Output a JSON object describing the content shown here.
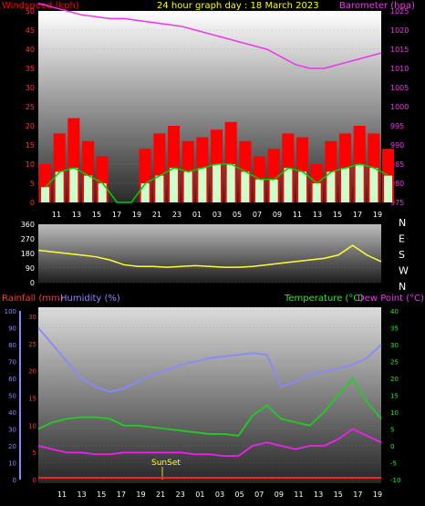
{
  "colors": {
    "background": "#000000",
    "windspeed_label": "#ff0000",
    "title": "#ffff00",
    "barometer": "#ee33ee",
    "gust": "#ff0000",
    "average_wind": "#00cc00",
    "wind_fill": "#ccffcc",
    "direction": "#ffff33",
    "rainfall": "#ff2222",
    "humidity": "#8888ff",
    "temperature": "#22cc22",
    "dewpoint": "#ee22ee",
    "axis_text": "#ffffff",
    "temp_axis": "#22ee22"
  },
  "chart_data": [
    {
      "id": "wind-baro",
      "type": "bar",
      "title": "24 hour graph day : 18 March 2023",
      "left_label": "Windspeed (kph)",
      "right_label": "Barometer (hpa)",
      "left_ticks": [
        "0",
        "5",
        "10",
        "15",
        "20",
        "25",
        "30",
        "35",
        "40",
        "45",
        "50"
      ],
      "right_ticks": [
        "975",
        "980",
        "985",
        "990",
        "995",
        "1000",
        "1005",
        "1010",
        "1015",
        "1020",
        "1025"
      ],
      "x_ticks": [
        "11",
        "13",
        "15",
        "17",
        "19",
        "21",
        "23",
        "01",
        "03",
        "05",
        "07",
        "09",
        "11",
        "13",
        "15",
        "17",
        "19"
      ],
      "ylim_left": [
        0,
        50
      ],
      "ylim_right": [
        975,
        1025
      ],
      "series": [
        {
          "name": "Barometer (hpa)",
          "x": [
            0,
            1,
            2,
            3,
            4,
            5,
            6,
            7,
            8,
            9,
            10,
            11,
            12,
            13,
            14,
            15,
            16,
            17,
            18,
            19,
            20,
            21,
            22,
            23,
            24
          ],
          "values": [
            1027,
            1026,
            1025,
            1024,
            1023.5,
            1023,
            1023,
            1022.5,
            1022,
            1021.5,
            1021,
            1020,
            1019,
            1018,
            1017,
            1016,
            1015,
            1013,
            1011,
            1010,
            1010,
            1011,
            1012,
            1013,
            1014
          ]
        },
        {
          "name": "Gust",
          "x": [
            0,
            1,
            2,
            3,
            4,
            5,
            6,
            7,
            8,
            9,
            10,
            11,
            12,
            13,
            14,
            15,
            16,
            17,
            18,
            19,
            20,
            21,
            22,
            23,
            24
          ],
          "values": [
            10,
            18,
            22,
            16,
            12,
            0,
            0,
            14,
            18,
            20,
            16,
            17,
            19,
            21,
            16,
            12,
            14,
            18,
            17,
            10,
            16,
            18,
            20,
            18,
            14
          ]
        },
        {
          "name": "Average",
          "x": [
            0,
            1,
            2,
            3,
            4,
            5,
            6,
            7,
            8,
            9,
            10,
            11,
            12,
            13,
            14,
            15,
            16,
            17,
            18,
            19,
            20,
            21,
            22,
            23,
            24
          ],
          "values": [
            4,
            8,
            9,
            7,
            5,
            0,
            0,
            5,
            7,
            9,
            8,
            9,
            10,
            10,
            8,
            6,
            6,
            9,
            8,
            5,
            8,
            9,
            10,
            9,
            7
          ]
        }
      ]
    },
    {
      "id": "direction",
      "type": "line",
      "left_ticks": [
        "0",
        "90",
        "180",
        "270",
        "360"
      ],
      "right_ticks": [
        "N",
        "W",
        "S",
        "E",
        "N"
      ],
      "ylim": [
        0,
        360
      ],
      "series": [
        {
          "name": "Direction",
          "x": [
            0,
            1,
            2,
            3,
            4,
            5,
            6,
            7,
            8,
            9,
            10,
            11,
            12,
            13,
            14,
            15,
            16,
            17,
            18,
            19,
            20,
            21,
            22,
            23,
            24
          ],
          "values": [
            200,
            190,
            180,
            170,
            160,
            140,
            110,
            100,
            100,
            95,
            100,
            105,
            100,
            95,
            95,
            100,
            110,
            120,
            130,
            140,
            150,
            170,
            230,
            170,
            130
          ]
        }
      ]
    },
    {
      "id": "temp-hum",
      "type": "line",
      "rain_label": "Rainfall (mm)",
      "hum_label": "Humidity (%)",
      "temp_label": "Temperature (°C)",
      "dew_label": "Dew Point (°C)",
      "annotation": "SunSet",
      "hum_ticks": [
        "0",
        "10",
        "20",
        "30",
        "40",
        "50",
        "60",
        "70",
        "80",
        "90",
        "100"
      ],
      "rain_ticks": [
        "0",
        "5",
        "10",
        "15",
        "20",
        "25",
        "30"
      ],
      "temp_ticks": [
        "-10",
        "-5",
        "0",
        "5",
        "10",
        "15",
        "20",
        "25",
        "30",
        "35",
        "40"
      ],
      "x_ticks": [
        "11",
        "13",
        "15",
        "17",
        "19",
        "21",
        "23",
        "01",
        "03",
        "05",
        "07",
        "09",
        "11",
        "13",
        "15",
        "17",
        "19"
      ],
      "ylim_humidity": [
        0,
        100
      ],
      "ylim_temperature": [
        -10,
        40
      ],
      "series": [
        {
          "name": "Humidity (%)",
          "x": [
            0,
            1,
            2,
            3,
            4,
            5,
            6,
            7,
            8,
            9,
            10,
            11,
            12,
            13,
            14,
            15,
            16,
            17,
            18,
            19,
            20,
            21,
            22,
            23,
            24
          ],
          "values": [
            90,
            80,
            70,
            60,
            55,
            52,
            54,
            58,
            62,
            65,
            68,
            70,
            72,
            73,
            74,
            75,
            74,
            55,
            58,
            62,
            64,
            66,
            68,
            72,
            80
          ]
        },
        {
          "name": "Temperature (°C)",
          "x": [
            0,
            1,
            2,
            3,
            4,
            5,
            6,
            7,
            8,
            9,
            10,
            11,
            12,
            13,
            14,
            15,
            16,
            17,
            18,
            19,
            20,
            21,
            22,
            23,
            24
          ],
          "values": [
            5,
            7,
            8,
            8.5,
            8.5,
            8,
            6,
            6,
            5.5,
            5,
            4.5,
            4,
            3.5,
            3.5,
            3,
            9,
            12,
            8,
            7,
            6,
            10,
            15,
            20,
            13,
            8
          ]
        },
        {
          "name": "Dew Point (°C)",
          "x": [
            0,
            1,
            2,
            3,
            4,
            5,
            6,
            7,
            8,
            9,
            10,
            11,
            12,
            13,
            14,
            15,
            16,
            17,
            18,
            19,
            20,
            21,
            22,
            23,
            24
          ],
          "values": [
            0,
            -1,
            -2,
            -2,
            -2.5,
            -2.5,
            -2,
            -2,
            -2,
            -2,
            -2,
            -2.5,
            -2.5,
            -3,
            -3,
            0,
            1,
            0,
            -1,
            0,
            0,
            2,
            5,
            3,
            1
          ]
        },
        {
          "name": "Rainfall (mm)",
          "x": [
            0,
            24
          ],
          "values": [
            0,
            0
          ]
        }
      ]
    }
  ]
}
